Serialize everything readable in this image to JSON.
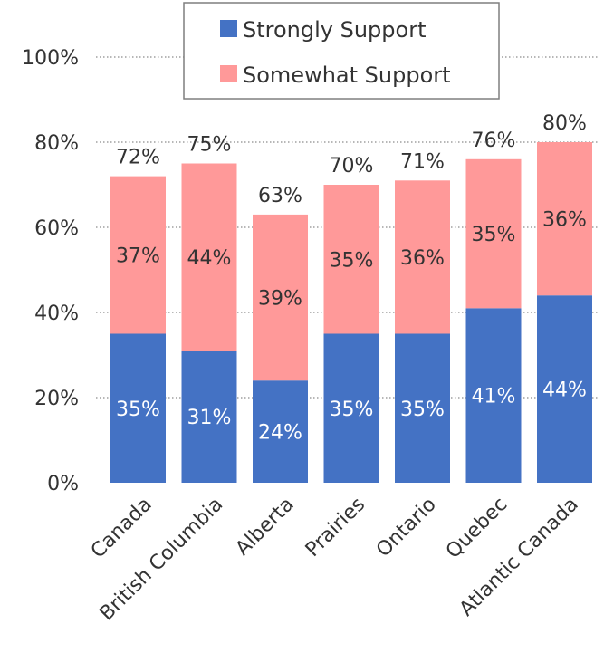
{
  "chart_data": {
    "type": "bar",
    "stacked": true,
    "categories": [
      "Canada",
      "British Columbia",
      "Alberta",
      "Prairies",
      "Ontario",
      "Quebec",
      "Atlantic Canada"
    ],
    "series": [
      {
        "name": "Strongly Support",
        "color": "#4472C4",
        "values": [
          35,
          31,
          24,
          35,
          35,
          41,
          44
        ],
        "labels": [
          "35%",
          "31%",
          "24%",
          "35%",
          "35%",
          "41%",
          "44%"
        ]
      },
      {
        "name": "Somewhat Support",
        "color": "#FF9999",
        "values": [
          37,
          44,
          39,
          35,
          36,
          35,
          36
        ],
        "labels": [
          "37%",
          "44%",
          "39%",
          "35%",
          "36%",
          "35%",
          "36%"
        ]
      }
    ],
    "totals": [
      72,
      75,
      63,
      70,
      71,
      76,
      80
    ],
    "total_labels": [
      "72%",
      "75%",
      "63%",
      "70%",
      "71%",
      "76%",
      "80%"
    ],
    "ylim": [
      0,
      100
    ],
    "yticks": [
      0,
      20,
      40,
      60,
      80,
      100
    ],
    "ytick_labels": [
      "0%",
      "20%",
      "40%",
      "60%",
      "80%",
      "100%"
    ],
    "gridlines": true,
    "legend_position": "top-right",
    "title": "",
    "xlabel": "",
    "ylabel": ""
  }
}
